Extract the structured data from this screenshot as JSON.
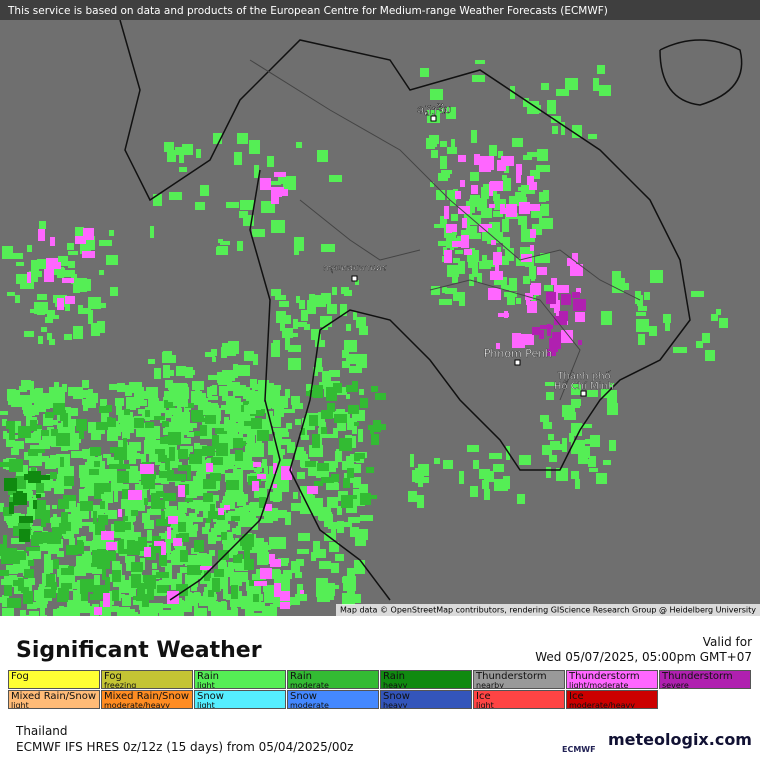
{
  "banner": "This service is based on data and products of the European Centre for Medium-range Weather Forecasts (ECMWF)",
  "map": {
    "cities": [
      {
        "name": "ວຽງຈັນ"
      },
      {
        "name": "กรุงเทพมหานคร"
      },
      {
        "name": "Phnom Penh"
      },
      {
        "name": "Thành phố",
        "name2": "Hồ Chí Minh"
      }
    ],
    "attribution": "Map data © OpenStreetMap contributors, rendering GIScience Research Group @ Heidelberg University"
  },
  "header": {
    "title": "Significant Weather",
    "valid_label": "Valid for",
    "valid_time": "Wed 05/07/2025, 05:00pm GMT+07"
  },
  "legend": [
    {
      "name": "Fog",
      "color": "#ffff33"
    },
    {
      "name": "Fog",
      "sub": "freezing",
      "color": "#c4c434"
    },
    {
      "name": "Rain",
      "sub": "light",
      "color": "#55ee55"
    },
    {
      "name": "Rain",
      "sub": "moderate",
      "color": "#33bb33"
    },
    {
      "name": "Rain",
      "sub": "heavy",
      "color": "#108a10"
    },
    {
      "name": "Thunderstorm",
      "sub": "nearby",
      "color": "#999999"
    },
    {
      "name": "Thunderstorm",
      "sub": "light/moderate",
      "color": "#ff66ff"
    },
    {
      "name": "Thunderstorm",
      "sub": "severe",
      "color": "#b020b0"
    },
    {
      "name": "Mixed Rain/Snow",
      "sub": "light",
      "color": "#ffbb77"
    },
    {
      "name": "Mixed Rain/Snow",
      "sub": "moderate/heavy",
      "color": "#ff8c22"
    },
    {
      "name": "Snow",
      "sub": "light",
      "color": "#55eeff"
    },
    {
      "name": "Snow",
      "sub": "moderate",
      "color": "#4488ff"
    },
    {
      "name": "Snow",
      "sub": "heavy",
      "color": "#3355bb"
    },
    {
      "name": "Ice",
      "sub": "light",
      "color": "#ff4444"
    },
    {
      "name": "Ice",
      "sub": "moderate/heavy",
      "color": "#cc0000"
    }
  ],
  "footer": {
    "region": "Thailand",
    "model": "ECMWF IFS HRES 0z/12z (15 days) from  05/04/2025/00z",
    "ecmwf_logo": "ECMWF",
    "brand": "meteologix.com"
  }
}
